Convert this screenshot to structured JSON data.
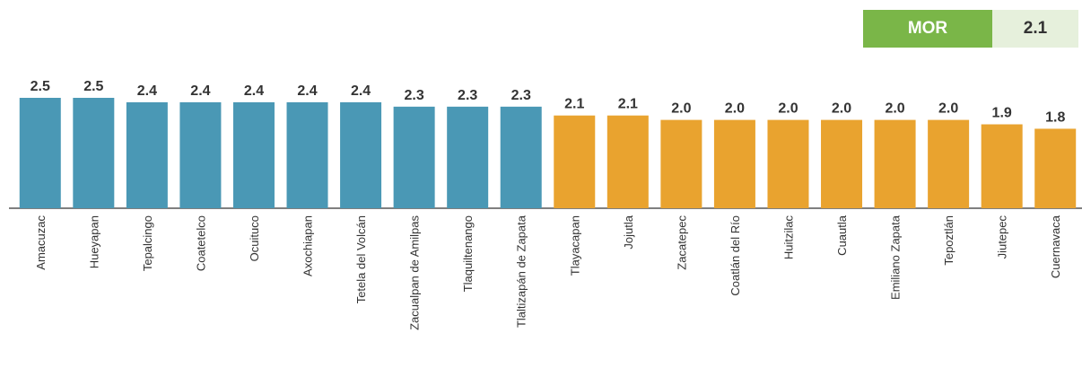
{
  "badge": {
    "label": "MOR",
    "value": "2.1"
  },
  "chart_data": {
    "type": "bar",
    "title": "",
    "xlabel": "",
    "ylabel": "",
    "ylim": [
      0,
      2.5
    ],
    "grid": false,
    "legend": "none",
    "colors": {
      "high": "#4a98b5",
      "low": "#e9a32f",
      "axis": "#555555",
      "badge_green": "#7ab648",
      "badge_light": "#e6f0dc"
    },
    "categories": [
      "Amacuzac",
      "Hueyapan",
      "Tepalcingo",
      "Coatetelco",
      "Ocuituco",
      "Axochiapan",
      "Tetela del Volcán",
      "Zacualpan de Amilpas",
      "Tlaquiltenango",
      "Tlaltizapán de Zapata",
      "Tlayacapan",
      "Jojutla",
      "Zacatepec",
      "Coatlán del Río",
      "Huitzilac",
      "Cuautla",
      "Emiliano Zapata",
      "Tepoztlán",
      "Jiutepec",
      "Cuernavaca"
    ],
    "values": [
      2.5,
      2.5,
      2.4,
      2.4,
      2.4,
      2.4,
      2.4,
      2.3,
      2.3,
      2.3,
      2.1,
      2.1,
      2.0,
      2.0,
      2.0,
      2.0,
      2.0,
      2.0,
      1.9,
      1.8
    ],
    "value_labels": [
      "2.5",
      "2.5",
      "2.4",
      "2.4",
      "2.4",
      "2.4",
      "2.4",
      "2.3",
      "2.3",
      "2.3",
      "2.1",
      "2.1",
      "2.0",
      "2.0",
      "2.0",
      "2.0",
      "2.0",
      "2.0",
      "1.9",
      "1.8"
    ],
    "series_color_index": [
      "high",
      "high",
      "high",
      "high",
      "high",
      "high",
      "high",
      "high",
      "high",
      "high",
      "low",
      "low",
      "low",
      "low",
      "low",
      "low",
      "low",
      "low",
      "low",
      "low"
    ]
  }
}
